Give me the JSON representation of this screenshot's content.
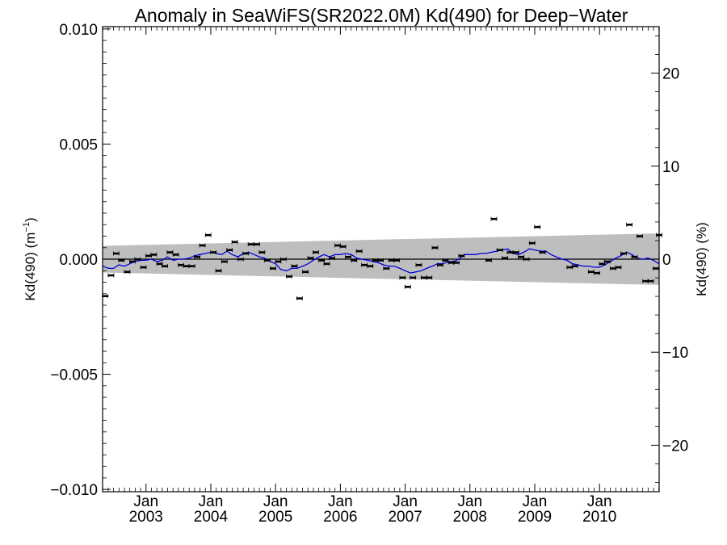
{
  "chart_data": {
    "type": "scatter",
    "title": "Anomaly in SeaWiFS(SR2022.0M) Kd(490) for Deep−Water",
    "ylabel_left": {
      "base": "Kd(490) (m",
      "sup": "−1",
      "end": ")"
    },
    "ylabel_right": "Kd(490) (%)",
    "xlim": [
      2002.33,
      2010.92
    ],
    "ylim_left": [
      -0.0101,
      0.0101
    ],
    "ylim_right": [
      -25,
      25
    ],
    "x_ticks": [
      {
        "x": 2003.0,
        "month": "Jan",
        "year": "2003"
      },
      {
        "x": 2004.0,
        "month": "Jan",
        "year": "2004"
      },
      {
        "x": 2005.0,
        "month": "Jan",
        "year": "2005"
      },
      {
        "x": 2006.0,
        "month": "Jan",
        "year": "2006"
      },
      {
        "x": 2007.0,
        "month": "Jan",
        "year": "2007"
      },
      {
        "x": 2008.0,
        "month": "Jan",
        "year": "2008"
      },
      {
        "x": 2009.0,
        "month": "Jan",
        "year": "2009"
      },
      {
        "x": 2010.0,
        "month": "Jan",
        "year": "2010"
      }
    ],
    "y_ticks_left": [
      {
        "v": 0.01,
        "label": "0.010"
      },
      {
        "v": 0.005,
        "label": "0.005"
      },
      {
        "v": 0.0,
        "label": "0.000"
      },
      {
        "v": -0.005,
        "label": "−0.005"
      },
      {
        "v": -0.01,
        "label": "−0.010"
      }
    ],
    "y_ticks_right": [
      {
        "v": 20,
        "label": "20"
      },
      {
        "v": 10,
        "label": "10"
      },
      {
        "v": 0,
        "label": "0"
      },
      {
        "v": -10,
        "label": "−10"
      },
      {
        "v": -20,
        "label": "−20"
      }
    ],
    "uncertainty_band": {
      "x": [
        2002.33,
        2010.92
      ],
      "upper": [
        0.00058,
        0.00112
      ],
      "lower": [
        -0.00058,
        -0.00112
      ],
      "color": "#bebebe"
    },
    "zero_line": {
      "y": 0.0,
      "color": "#000000"
    },
    "monthly_points": {
      "color": "#000000",
      "points": [
        [
          2002.37,
          -0.0016
        ],
        [
          2002.46,
          -0.0007
        ],
        [
          2002.54,
          0.00025
        ],
        [
          2002.62,
          -5e-05
        ],
        [
          2002.71,
          -0.00055
        ],
        [
          2002.79,
          -0.0001
        ],
        [
          2002.87,
          0.0
        ],
        [
          2002.96,
          -0.00035
        ],
        [
          2003.04,
          0.00015
        ],
        [
          2003.12,
          0.0002
        ],
        [
          2003.21,
          -0.0002
        ],
        [
          2003.29,
          -0.0003
        ],
        [
          2003.37,
          0.0003
        ],
        [
          2003.46,
          0.0002
        ],
        [
          2003.54,
          -0.00025
        ],
        [
          2003.62,
          -0.0003
        ],
        [
          2003.71,
          -0.0003
        ],
        [
          2003.79,
          0.0001
        ],
        [
          2003.87,
          0.0006
        ],
        [
          2003.96,
          0.00105
        ],
        [
          2004.04,
          0.0003
        ],
        [
          2004.12,
          -0.0005
        ],
        [
          2004.21,
          -0.0001
        ],
        [
          2004.29,
          0.0004
        ],
        [
          2004.37,
          0.00075
        ],
        [
          2004.46,
          0.0
        ],
        [
          2004.54,
          0.00025
        ],
        [
          2004.62,
          0.00065
        ],
        [
          2004.71,
          0.00065
        ],
        [
          2004.79,
          0.0003
        ],
        [
          2004.87,
          -5e-05
        ],
        [
          2004.96,
          -0.0004
        ],
        [
          2005.04,
          -0.0001
        ],
        [
          2005.12,
          0.0
        ],
        [
          2005.21,
          -0.00075
        ],
        [
          2005.29,
          -0.0003
        ],
        [
          2005.37,
          -0.0017
        ],
        [
          2005.46,
          -0.00055
        ],
        [
          2005.54,
          5e-05
        ],
        [
          2005.62,
          0.0003
        ],
        [
          2005.71,
          -5e-05
        ],
        [
          2005.79,
          -0.0002
        ],
        [
          2005.87,
          5e-05
        ],
        [
          2005.96,
          0.0006
        ],
        [
          2006.04,
          0.00055
        ],
        [
          2006.12,
          0.0001
        ],
        [
          2006.21,
          -5e-05
        ],
        [
          2006.29,
          0.00035
        ],
        [
          2006.37,
          -0.00025
        ],
        [
          2006.46,
          -0.0003
        ],
        [
          2006.54,
          -5e-05
        ],
        [
          2006.62,
          -5e-05
        ],
        [
          2006.71,
          -0.0004
        ],
        [
          2006.79,
          -5e-05
        ],
        [
          2006.87,
          -5e-05
        ],
        [
          2006.96,
          -0.0008
        ],
        [
          2007.04,
          -0.0012
        ],
        [
          2007.12,
          -0.0008
        ],
        [
          2007.21,
          -0.00025
        ],
        [
          2007.29,
          -0.0008
        ],
        [
          2007.37,
          -0.0008
        ],
        [
          2007.46,
          0.0005
        ],
        [
          2007.54,
          -0.00025
        ],
        [
          2007.62,
          -5e-05
        ],
        [
          2007.71,
          -0.00015
        ],
        [
          2007.79,
          -0.00015
        ],
        [
          2007.87,
          0.00015
        ],
        [
          2008.37,
          0.00175
        ],
        [
          2008.29,
          -5e-05
        ],
        [
          2008.46,
          0.0004
        ],
        [
          2008.54,
          5e-05
        ],
        [
          2008.62,
          0.0003
        ],
        [
          2008.71,
          0.0003
        ],
        [
          2008.79,
          0.0001
        ],
        [
          2008.87,
          0.0
        ],
        [
          2008.96,
          0.0007
        ],
        [
          2009.04,
          0.0014
        ],
        [
          2009.12,
          0.0003
        ],
        [
          2009.54,
          -0.00035
        ],
        [
          2009.62,
          -0.0003
        ],
        [
          2009.87,
          -0.00055
        ],
        [
          2009.96,
          -0.0006
        ],
        [
          2010.04,
          -0.0002
        ],
        [
          2010.12,
          -0.0001
        ],
        [
          2010.21,
          -0.0004
        ],
        [
          2010.29,
          -0.00035
        ],
        [
          2010.37,
          0.00025
        ],
        [
          2010.46,
          0.0015
        ],
        [
          2010.54,
          0.0001
        ],
        [
          2010.62,
          0.001
        ],
        [
          2010.71,
          -0.00095
        ],
        [
          2010.79,
          -0.00095
        ],
        [
          2010.87,
          -0.0004
        ],
        [
          2010.92,
          0.00105
        ]
      ]
    },
    "running_mean": {
      "color": "#0000dd",
      "points": [
        [
          2002.33,
          -0.0003
        ],
        [
          2002.42,
          -0.0004
        ],
        [
          2002.5,
          -0.0004
        ],
        [
          2002.58,
          -0.00025
        ],
        [
          2002.67,
          -0.0003
        ],
        [
          2002.75,
          -0.0002
        ],
        [
          2002.83,
          -0.0001
        ],
        [
          2002.92,
          -5e-05
        ],
        [
          2003.0,
          -5e-05
        ],
        [
          2003.08,
          0.0
        ],
        [
          2003.17,
          -0.0001
        ],
        [
          2003.25,
          -5e-05
        ],
        [
          2003.33,
          0.0001
        ],
        [
          2003.42,
          -5e-05
        ],
        [
          2003.5,
          0.0
        ],
        [
          2003.58,
          0.0
        ],
        [
          2003.67,
          5e-05
        ],
        [
          2003.75,
          0.00015
        ],
        [
          2003.83,
          0.0002
        ],
        [
          2003.92,
          0.00025
        ],
        [
          2004.0,
          0.0003
        ],
        [
          2004.08,
          0.00025
        ],
        [
          2004.17,
          0.0002
        ],
        [
          2004.25,
          0.00035
        ],
        [
          2004.33,
          0.0002
        ],
        [
          2004.42,
          0.0001
        ],
        [
          2004.5,
          0.00025
        ],
        [
          2004.58,
          0.0003
        ],
        [
          2004.67,
          0.0002
        ],
        [
          2004.75,
          0.0001
        ],
        [
          2004.83,
          5e-05
        ],
        [
          2004.92,
          -0.0001
        ],
        [
          2005.0,
          -0.0002
        ],
        [
          2005.08,
          -0.00045
        ],
        [
          2005.17,
          -0.0005
        ],
        [
          2005.25,
          -0.0004
        ],
        [
          2005.33,
          -0.0004
        ],
        [
          2005.42,
          -0.0003
        ],
        [
          2005.5,
          -0.0002
        ],
        [
          2005.58,
          -5e-05
        ],
        [
          2005.67,
          0.0001
        ],
        [
          2005.75,
          0.0002
        ],
        [
          2005.83,
          0.0001
        ],
        [
          2005.92,
          0.0002
        ],
        [
          2006.0,
          0.0002
        ],
        [
          2006.08,
          0.00025
        ],
        [
          2006.17,
          0.0002
        ],
        [
          2006.25,
          5e-05
        ],
        [
          2006.33,
          0.0
        ],
        [
          2006.42,
          -5e-05
        ],
        [
          2006.5,
          -0.0001
        ],
        [
          2006.58,
          -0.00015
        ],
        [
          2006.67,
          -0.00025
        ],
        [
          2006.75,
          -0.0003
        ],
        [
          2006.83,
          -0.0003
        ],
        [
          2006.92,
          -0.0004
        ],
        [
          2007.0,
          -0.0005
        ],
        [
          2007.08,
          -0.0006
        ],
        [
          2007.17,
          -0.00055
        ],
        [
          2007.25,
          -0.0005
        ],
        [
          2007.33,
          -0.0004
        ],
        [
          2007.42,
          -0.0003
        ],
        [
          2007.5,
          -0.0002
        ],
        [
          2007.58,
          -0.0002
        ],
        [
          2007.67,
          -0.0001
        ],
        [
          2007.75,
          -0.0001
        ],
        [
          2007.83,
          0.0
        ],
        [
          2007.92,
          0.0002
        ],
        [
          2008.0,
          0.0002
        ],
        [
          2008.08,
          0.0002
        ],
        [
          2008.17,
          0.00025
        ],
        [
          2008.25,
          0.00025
        ],
        [
          2008.33,
          0.0003
        ],
        [
          2008.42,
          0.00035
        ],
        [
          2008.5,
          0.0004
        ],
        [
          2008.58,
          0.00045
        ],
        [
          2008.67,
          0.00025
        ],
        [
          2008.75,
          0.0002
        ],
        [
          2008.83,
          0.0003
        ],
        [
          2008.92,
          0.00045
        ],
        [
          2009.0,
          0.0004
        ],
        [
          2009.08,
          0.00035
        ],
        [
          2009.17,
          0.00035
        ],
        [
          2009.25,
          0.0002
        ],
        [
          2009.33,
          0.0001
        ],
        [
          2009.42,
          0.0
        ],
        [
          2009.5,
          -5e-05
        ],
        [
          2009.58,
          -0.0002
        ],
        [
          2009.67,
          -0.00025
        ],
        [
          2009.75,
          -0.0003
        ],
        [
          2009.83,
          -0.0003
        ],
        [
          2009.92,
          -0.00035
        ],
        [
          2010.0,
          -0.00035
        ],
        [
          2010.08,
          -0.00025
        ],
        [
          2010.17,
          -0.0001
        ],
        [
          2010.25,
          5e-05
        ],
        [
          2010.33,
          0.00015
        ],
        [
          2010.42,
          0.0003
        ],
        [
          2010.5,
          0.0002
        ],
        [
          2010.58,
          5e-05
        ],
        [
          2010.67,
          0.0
        ],
        [
          2010.75,
          5e-05
        ],
        [
          2010.83,
          -5e-05
        ],
        [
          2010.92,
          -0.0002
        ]
      ]
    }
  }
}
